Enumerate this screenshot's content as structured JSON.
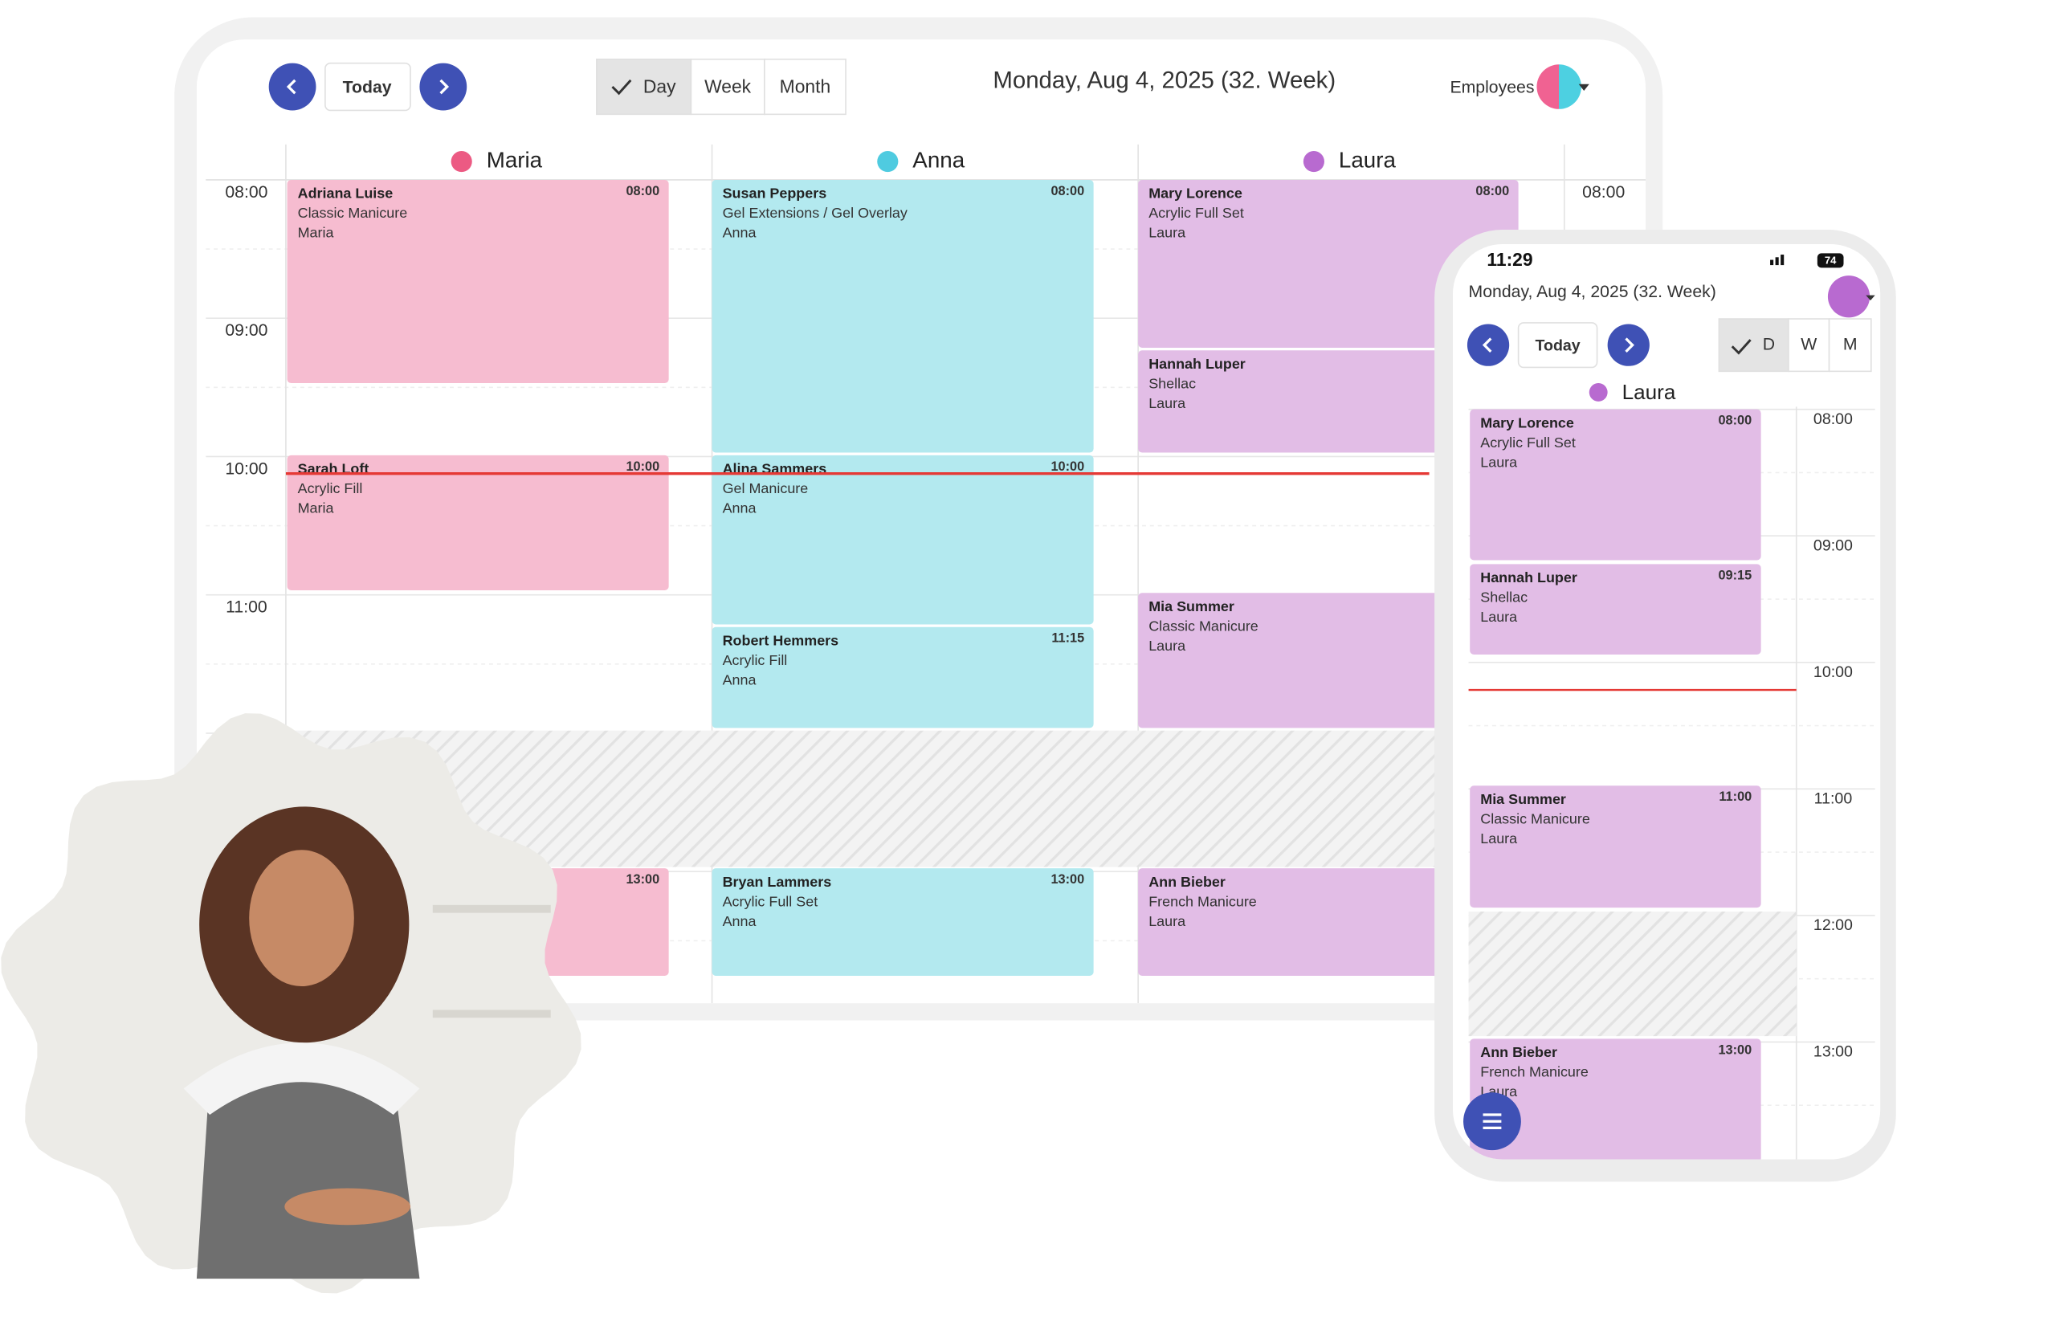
{
  "tablet": {
    "today": "Today",
    "views": [
      "Day",
      "Week",
      "Month"
    ],
    "date": "Monday, Aug 4, 2025 (32. Week)",
    "employees_label": "Employees",
    "times": [
      "08:00",
      "09:00",
      "10:00",
      "11:00"
    ],
    "right_time": "08:00",
    "columns": [
      {
        "name": "Maria",
        "appointments": [
          {
            "client": "Adriana Luise",
            "service": "Classic Manicure",
            "employee": "Maria",
            "time": "08:00"
          },
          {
            "client": "Sarah Loft",
            "service": "Acrylic Fill",
            "employee": "Maria",
            "time": "10:00"
          },
          {
            "time": "13:00"
          }
        ]
      },
      {
        "name": "Anna",
        "appointments": [
          {
            "client": "Susan Peppers",
            "service": "Gel Extensions / Gel Overlay",
            "employee": "Anna",
            "time": "08:00"
          },
          {
            "client": "Alina Sammers",
            "service": "Gel Manicure",
            "employee": "Anna",
            "time": "10:00"
          },
          {
            "client": "Robert Hemmers",
            "service": "Acrylic Fill",
            "employee": "Anna",
            "time": "11:15"
          },
          {
            "client": "Bryan Lammers",
            "service": "Acrylic Full Set",
            "employee": "Anna",
            "time": "13:00"
          }
        ]
      },
      {
        "name": "Laura",
        "appointments": [
          {
            "client": "Mary Lorence",
            "service": "Acrylic Full Set",
            "employee": "Laura",
            "time": "08:00"
          },
          {
            "client": "Hannah Luper",
            "service": "Shellac",
            "employee": "Laura"
          },
          {
            "client": "Mia Summer",
            "service": "Classic Manicure",
            "employee": "Laura"
          },
          {
            "client": "Ann Bieber",
            "service": "French Manicure",
            "employee": "Laura"
          }
        ]
      }
    ]
  },
  "phone": {
    "clock": "11:29",
    "battery": "74",
    "date": "Monday, Aug 4, 2025 (32. Week)",
    "today": "Today",
    "views": [
      "D",
      "W",
      "M"
    ],
    "employee": "Laura",
    "times": [
      "08:00",
      "09:00",
      "10:00",
      "11:00",
      "12:00",
      "13:00"
    ],
    "appointments": [
      {
        "client": "Mary Lorence",
        "service": "Acrylic Full Set",
        "employee": "Laura",
        "time": "08:00"
      },
      {
        "client": "Hannah Luper",
        "service": "Shellac",
        "employee": "Laura",
        "time": "09:15"
      },
      {
        "client": "Mia Summer",
        "service": "Classic Manicure",
        "employee": "Laura",
        "time": "11:00"
      },
      {
        "client": "Ann Bieber",
        "service": "French Manicure",
        "employee": "Laura",
        "time": "13:00"
      }
    ]
  }
}
